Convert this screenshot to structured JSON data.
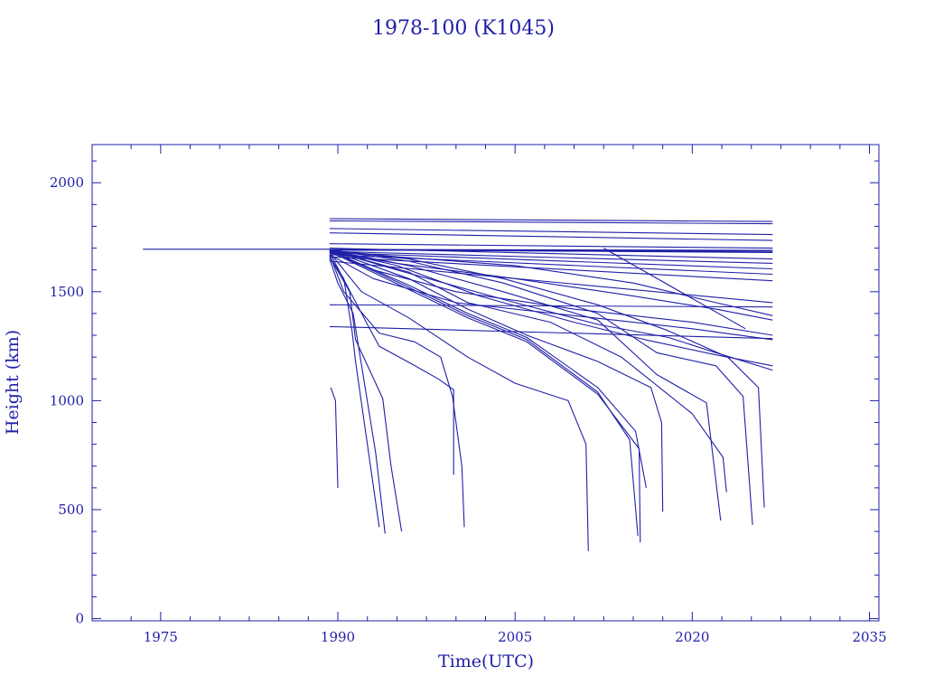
{
  "chart_data": {
    "type": "line",
    "title": "1978-100 (K1045)",
    "xlabel": "Time(UTC)",
    "ylabel": "Height (km)",
    "xlim": [
      1969.2,
      2035.8
    ],
    "ylim": [
      -10,
      2175
    ],
    "x_ticks": [
      1975,
      1990,
      2005,
      2020,
      2035
    ],
    "y_ticks": [
      0,
      500,
      1000,
      1500,
      2000
    ],
    "color": "#1f1fa8",
    "grid": false,
    "series": [
      {
        "x": [
          1973.5,
          1989.3
        ],
        "y": [
          1695,
          1695
        ]
      },
      {
        "x": [
          1989.3,
          2026.8
        ],
        "y": [
          1690,
          1690
        ]
      },
      {
        "x": [
          1989.3,
          2026.8
        ],
        "y": [
          1693,
          1680
        ]
      },
      {
        "x": [
          1989.3,
          2026.8
        ],
        "y": [
          1691,
          1685
        ]
      },
      {
        "x": [
          1989.3,
          2026.8
        ],
        "y": [
          1694,
          1690
        ]
      },
      {
        "x": [
          1989.3,
          2026.8
        ],
        "y": [
          1835,
          1822
        ]
      },
      {
        "x": [
          1989.3,
          2026.8
        ],
        "y": [
          1825,
          1812
        ]
      },
      {
        "x": [
          1989.3,
          2026.8
        ],
        "y": [
          1790,
          1762
        ]
      },
      {
        "x": [
          1989.3,
          2026.8
        ],
        "y": [
          1770,
          1735
        ]
      },
      {
        "x": [
          1989.3,
          2026.8
        ],
        "y": [
          1720,
          1700
        ]
      },
      {
        "x": [
          1989.3,
          2026.8
        ],
        "y": [
          1700,
          1650
        ]
      },
      {
        "x": [
          1989.3,
          2026.8
        ],
        "y": [
          1685,
          1630
        ]
      },
      {
        "x": [
          1989.3,
          2026.8
        ],
        "y": [
          1680,
          1605
        ]
      },
      {
        "x": [
          1989.3,
          2026.8
        ],
        "y": [
          1670,
          1580
        ]
      },
      {
        "x": [
          1989.3,
          2026.8
        ],
        "y": [
          1660,
          1550
        ]
      },
      {
        "x": [
          1989.3,
          2026.8
        ],
        "y": [
          1640,
          1450
        ]
      },
      {
        "x": [
          1989.3,
          2026.8
        ],
        "y": [
          1440,
          1430
        ]
      },
      {
        "x": [
          1989.3,
          2026.8
        ],
        "y": [
          1340,
          1285
        ]
      },
      {
        "x": [
          1989.3,
          1995,
          2005,
          2015,
          2022,
          2026.8
        ],
        "y": [
          1690,
          1660,
          1620,
          1540,
          1450,
          1390
        ]
      },
      {
        "x": [
          1989.3,
          1995,
          2005,
          2015,
          2022,
          2026.8
        ],
        "y": [
          1680,
          1630,
          1560,
          1480,
          1420,
          1370
        ]
      },
      {
        "x": [
          1989.3,
          1993,
          2000,
          2010,
          2020,
          2026.8
        ],
        "y": [
          1670,
          1560,
          1450,
          1390,
          1330,
          1280
        ]
      },
      {
        "x": [
          1989.3,
          1993,
          2000,
          2010,
          2020,
          2026.8
        ],
        "y": [
          1680,
          1600,
          1500,
          1420,
          1360,
          1300
        ]
      },
      {
        "x": [
          1989.3,
          1995,
          2005,
          2012,
          2018,
          2022,
          2026.8
        ],
        "y": [
          1690,
          1600,
          1450,
          1350,
          1290,
          1220,
          1140
        ]
      },
      {
        "x": [
          1989.3,
          1995,
          2002,
          2010,
          2016,
          2022,
          2026.8
        ],
        "y": [
          1690,
          1620,
          1480,
          1360,
          1280,
          1210,
          1160
        ]
      },
      {
        "x": [
          2012.5,
          2024.5
        ],
        "y": [
          1700,
          1330
        ]
      },
      {
        "x": [
          1989.3,
          1990.5,
          1993.5,
          1996.5,
          1998.7,
          1999.7,
          2000.5,
          2000.7
        ],
        "y": [
          1670,
          1500,
          1310,
          1270,
          1200,
          1020,
          700,
          420
        ]
      },
      {
        "x": [
          1989.3,
          1992.5,
          1993.5,
          1996.2,
          1998.5,
          1999.8,
          1999.8
        ],
        "y": [
          1680,
          1350,
          1250,
          1170,
          1100,
          1050,
          660
        ]
      },
      {
        "x": [
          1989.3,
          1992,
          1996,
          2001,
          2005,
          2009.5,
          2011,
          2011.2
        ],
        "y": [
          1680,
          1500,
          1380,
          1200,
          1080,
          1000,
          800,
          310
        ]
      },
      {
        "x": [
          1989.3,
          1996,
          2001,
          2006,
          2012,
          2014.7,
          2015.4
        ],
        "y": [
          1690,
          1520,
          1390,
          1280,
          1040,
          820,
          380
        ]
      },
      {
        "x": [
          1989.3,
          1996,
          2001,
          2006,
          2012,
          2015.2,
          2016.1
        ],
        "y": [
          1690,
          1530,
          1400,
          1290,
          1060,
          860,
          600
        ]
      },
      {
        "x": [
          1989.3,
          1996,
          2001,
          2006,
          2012,
          2015.5,
          2015.6
        ],
        "y": [
          1685,
          1510,
          1380,
          1270,
          1030,
          780,
          350
        ]
      },
      {
        "x": [
          1989.3,
          1996,
          2001,
          2006,
          2012,
          2016.5,
          2017.4,
          2017.5
        ],
        "y": [
          1690,
          1560,
          1420,
          1300,
          1180,
          1060,
          900,
          490
        ]
      },
      {
        "x": [
          1989.3,
          1996,
          2001,
          2008,
          2014,
          2020,
          2022.6,
          2022.9
        ],
        "y": [
          1690,
          1590,
          1450,
          1360,
          1200,
          940,
          740,
          580
        ]
      },
      {
        "x": [
          1989.3,
          1996,
          2004,
          2012,
          2017,
          2021.2,
          2022.4
        ],
        "y": [
          1690,
          1620,
          1500,
          1370,
          1120,
          990,
          450
        ]
      },
      {
        "x": [
          1989.3,
          1996,
          2004,
          2012,
          2017,
          2022,
          2024.3,
          2025.1
        ],
        "y": [
          1690,
          1640,
          1540,
          1400,
          1220,
          1160,
          1020,
          430
        ]
      },
      {
        "x": [
          1989.3,
          1996,
          2004,
          2012,
          2018,
          2023,
          2025.6,
          2026.1
        ],
        "y": [
          1690,
          1650,
          1560,
          1440,
          1320,
          1200,
          1060,
          510
        ]
      },
      {
        "x": [
          1989.3,
          1990.5,
          1991.2,
          1991.5,
          1993.5
        ],
        "y": [
          1660,
          1560,
          1320,
          1180,
          420
        ]
      },
      {
        "x": [
          1989.3,
          1991.0,
          1991.5,
          1993.8,
          1994.5,
          1995.4
        ],
        "y": [
          1660,
          1500,
          1280,
          1010,
          700,
          400
        ]
      },
      {
        "x": [
          1989.3,
          1990.0,
          1991.3,
          1993.2,
          1994.0
        ],
        "y": [
          1650,
          1540,
          1400,
          760,
          390
        ]
      },
      {
        "x": [
          1989.4,
          1989.8,
          1990.0
        ],
        "y": [
          1060,
          1000,
          600
        ]
      }
    ]
  }
}
